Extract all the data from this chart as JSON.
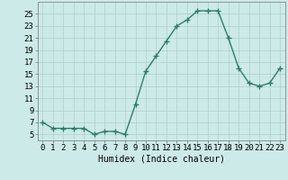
{
  "x": [
    0,
    1,
    2,
    3,
    4,
    5,
    6,
    7,
    8,
    9,
    10,
    11,
    12,
    13,
    14,
    15,
    16,
    17,
    18,
    19,
    20,
    21,
    22,
    23
  ],
  "y": [
    7,
    6,
    6,
    6,
    6,
    5,
    5.5,
    5.5,
    5,
    10,
    15.5,
    18,
    20.5,
    23,
    24,
    25.5,
    25.5,
    25.5,
    21,
    16,
    13.5,
    13,
    13.5,
    16
  ],
  "line_color": "#2e7d6e",
  "marker_color": "#2e7d6e",
  "bg_color": "#cceae7",
  "grid_color": "#b0d0cc",
  "xlabel": "Humidex (Indice chaleur)",
  "xlim": [
    -0.5,
    23.5
  ],
  "ylim": [
    4,
    27
  ],
  "yticks": [
    5,
    7,
    9,
    11,
    13,
    15,
    17,
    19,
    21,
    23,
    25
  ],
  "xticks": [
    0,
    1,
    2,
    3,
    4,
    5,
    6,
    7,
    8,
    9,
    10,
    11,
    12,
    13,
    14,
    15,
    16,
    17,
    18,
    19,
    20,
    21,
    22,
    23
  ],
  "xlabel_fontsize": 7,
  "tick_fontsize": 6.5,
  "linewidth": 1.0,
  "markersize": 4
}
